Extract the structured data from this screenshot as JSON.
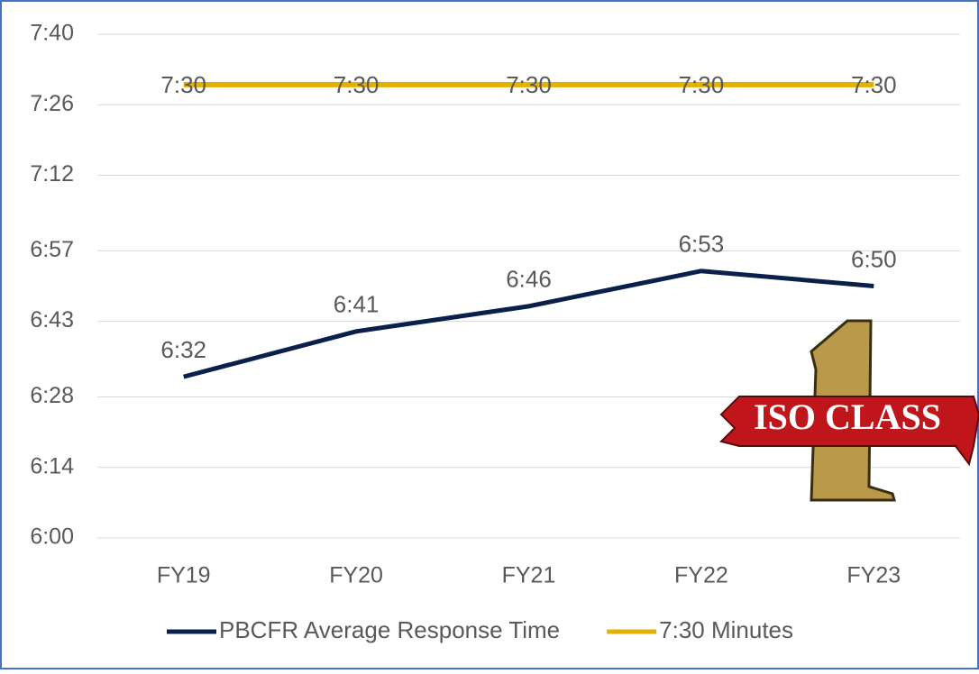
{
  "chart_data": {
    "type": "line",
    "categories": [
      "FY19",
      "FY20",
      "FY21",
      "FY22",
      "FY23"
    ],
    "series": [
      {
        "name": "PBCFR Average Response Time",
        "color": "#0b1f4b",
        "values": [
          392,
          401,
          406,
          413,
          410
        ],
        "value_labels": [
          "6:32",
          "6:41",
          "6:46",
          "6:53",
          "6:50"
        ]
      },
      {
        "name": "7:30 Minutes",
        "color": "#e6b000",
        "values": [
          450,
          450,
          450,
          450,
          450
        ],
        "value_labels": [
          "7:30",
          "7:30",
          "7:30",
          "7:30",
          "7:30"
        ]
      }
    ],
    "ylim": [
      360,
      460
    ],
    "yticks": [
      {
        "value": 360,
        "label": "6:00"
      },
      {
        "value": 374,
        "label": "6:14"
      },
      {
        "value": 388,
        "label": "6:28"
      },
      {
        "value": 403,
        "label": "6:43"
      },
      {
        "value": 417,
        "label": "6:57"
      },
      {
        "value": 432,
        "label": "7:12"
      },
      {
        "value": 446,
        "label": "7:26"
      },
      {
        "value": 460,
        "label": "7:40"
      }
    ],
    "grid": true,
    "legend": "bottom",
    "logo": {
      "number": "1",
      "text": "ISO CLASS"
    }
  }
}
